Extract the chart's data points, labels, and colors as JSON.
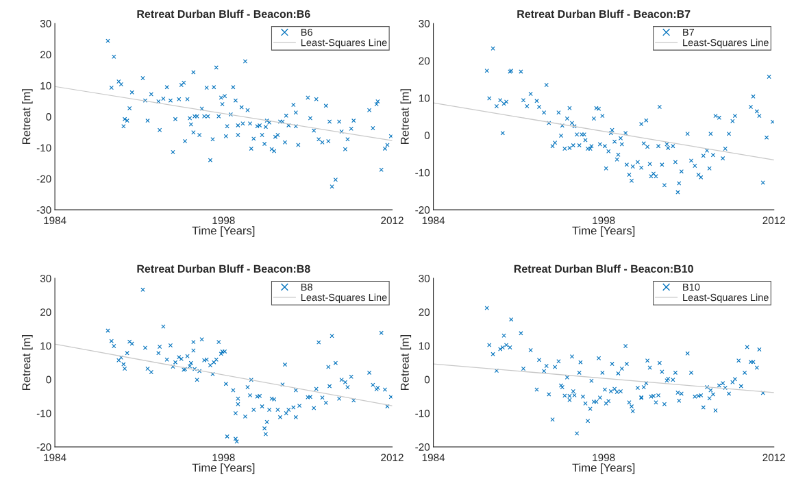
{
  "chart_data": [
    {
      "type": "scatter",
      "title": "Retreat Durban Bluff - Beacon:B6",
      "xlabel": "Time [Years]",
      "ylabel": "Retreat [m]",
      "xlim": [
        1984,
        2012
      ],
      "xticks": [
        1984,
        1998,
        2012
      ],
      "ylim": [
        -30,
        30
      ],
      "yticks": [
        -30,
        -20,
        -10,
        0,
        10,
        20,
        30
      ],
      "legend": "top right",
      "grid": false,
      "series": [
        {
          "name": "B6",
          "marker": "cross",
          "color": "#0072bd",
          "x": [
            1988.4,
            1988.9,
            1988.7,
            1989.3,
            1989.5,
            1989.7,
            1989.8,
            1990.0,
            1990.2,
            1990.4,
            1991.3,
            1991.5,
            1991.7,
            1992.0,
            1992.6,
            1992.7,
            1993.0,
            1993.3,
            1993.6,
            1993.8,
            1994.0,
            1994.3,
            1994.5,
            1994.7,
            1994.8,
            1995.0,
            1995.2,
            1995.3,
            1995.5,
            1995.5,
            1995.6,
            1995.8,
            1996.0,
            1996.2,
            1996.4,
            1996.6,
            1996.7,
            1996.9,
            1997.1,
            1997.2,
            1997.4,
            1997.6,
            1997.8,
            1997.9,
            1998.1,
            1998.2,
            1998.3,
            1998.6,
            1998.8,
            1999.0,
            1999.2,
            1999.2,
            1999.5,
            1999.6,
            1999.8,
            2000.0,
            2000.2,
            2000.3,
            2000.5,
            2000.8,
            2001.0,
            2001.2,
            2001.4,
            2001.5,
            2001.6,
            2001.8,
            2002.0,
            2002.2,
            2002.3,
            2002.5,
            2002.7,
            2002.9,
            2003.1,
            2003.2,
            2003.4,
            2003.8,
            2004.0,
            2004.0,
            2004.2,
            2005.0,
            2005.2,
            2005.5,
            2005.7,
            2005.9,
            2006.2,
            2006.5,
            2006.7,
            2006.8,
            2007.0,
            2007.3,
            2007.6,
            2007.8,
            2008.1,
            2008.3,
            2008.6,
            2008.8,
            2010.1,
            2010.4,
            2010.7,
            2010.8,
            2011.1,
            2011.4,
            2011.6,
            2011.9
          ],
          "values": [
            24.4,
            19.3,
            9.3,
            11.3,
            10.4,
            -3.1,
            -0.8,
            -1.3,
            2.7,
            7.8,
            12.4,
            5.2,
            -1.3,
            7.2,
            4.9,
            -4.3,
            5.8,
            9.5,
            5.2,
            -11.4,
            -0.8,
            5.6,
            10.2,
            10.9,
            -7.9,
            5.6,
            -0.5,
            -2.5,
            14.3,
            -5.1,
            0.1,
            0.1,
            -5.9,
            2.6,
            0.1,
            9.3,
            0.1,
            -14.0,
            -7.3,
            9.5,
            15.8,
            0.1,
            6.1,
            4.0,
            6.6,
            -6.3,
            -3.1,
            0.7,
            9.5,
            5.2,
            -5.9,
            -2.8,
            3.0,
            -2.2,
            17.8,
            2.1,
            -2.2,
            -10.3,
            -7.1,
            -3.1,
            -2.8,
            -5.9,
            -8.8,
            -3.3,
            -1.3,
            -1.9,
            -10.5,
            -11.1,
            -6.5,
            -5.9,
            -1.6,
            -1.6,
            -8.3,
            0.3,
            -2.8,
            3.8,
            1.3,
            -3.1,
            -9.1,
            6.1,
            -0.5,
            -4.5,
            5.6,
            -7.3,
            -8.3,
            3.5,
            -7.9,
            -1.6,
            -22.5,
            -20.3,
            -1.6,
            -4.8,
            -10.5,
            -7.3,
            -3.9,
            -1.3,
            2.1,
            -3.7,
            4.0,
            4.9,
            -17.1,
            -10.3,
            -9.1,
            -6.3
          ]
        },
        {
          "name": "Least-Squares Line",
          "type": "line",
          "line_style": "solid",
          "color": "#c8c8c8",
          "x": [
            1984,
            2012
          ],
          "values": [
            9.7,
            -7.7
          ]
        }
      ]
    },
    {
      "type": "scatter",
      "title": "Retreat Durban Bluff - Beacon:B7",
      "xlabel": "Time [Years]",
      "ylabel": "Retreat [m]",
      "xlim": [
        1984,
        2012
      ],
      "xticks": [
        1984,
        1998,
        2012
      ],
      "ylim": [
        -20,
        30
      ],
      "yticks": [
        -20,
        -10,
        0,
        10,
        20,
        30
      ],
      "legend": "top right",
      "grid": false,
      "series": [
        {
          "name": "B7",
          "marker": "cross",
          "color": "#0072bd",
          "x": [
            1988.4,
            1988.6,
            1988.9,
            1989.2,
            1989.5,
            1989.7,
            1989.8,
            1990.0,
            1990.3,
            1990.4,
            1991.2,
            1991.4,
            1991.7,
            1992.0,
            1992.5,
            1992.7,
            1993.1,
            1993.3,
            1993.5,
            1993.8,
            1994.0,
            1994.3,
            1994.5,
            1994.6,
            1994.8,
            1995.0,
            1995.2,
            1995.2,
            1995.4,
            1995.5,
            1995.6,
            1995.8,
            1996.0,
            1996.2,
            1996.4,
            1996.5,
            1996.7,
            1996.9,
            1997.0,
            1997.2,
            1997.4,
            1997.6,
            1997.7,
            1997.9,
            1998.1,
            1998.2,
            1998.4,
            1998.6,
            1998.7,
            1998.9,
            1999.1,
            1999.2,
            1999.4,
            1999.5,
            1999.8,
            1999.9,
            2000.1,
            2000.3,
            2000.4,
            2000.8,
            2001.1,
            2001.1,
            2001.3,
            2001.5,
            2001.6,
            2001.8,
            2001.9,
            2002.1,
            2002.3,
            2002.5,
            2002.6,
            2002.8,
            2003.0,
            2003.2,
            2003.3,
            2003.7,
            2003.9,
            2004.1,
            2004.2,
            2004.4,
            2004.9,
            2005.2,
            2005.5,
            2005.8,
            2006.0,
            2006.2,
            2006.5,
            2006.7,
            2006.8,
            2007.0,
            2007.2,
            2007.5,
            2007.8,
            2008.0,
            2008.3,
            2008.6,
            2008.8,
            2010.1,
            2010.3,
            2010.6,
            2010.8,
            2011.1,
            2011.4,
            2011.6,
            2011.9
          ],
          "values": [
            17.3,
            9.9,
            23.3,
            7.8,
            9.4,
            0.6,
            8.5,
            9.0,
            17.1,
            17.3,
            17.1,
            9.4,
            7.8,
            11.1,
            9.2,
            7.6,
            6.1,
            13.5,
            3.3,
            -2.9,
            -2.0,
            6.1,
            -0.1,
            2.6,
            -3.6,
            4.5,
            -3.4,
            7.3,
            3.3,
            -2.7,
            2.4,
            0.2,
            -2.7,
            0.2,
            0.2,
            -1.3,
            -3.6,
            -3.6,
            -2.9,
            4.5,
            7.3,
            7.1,
            -2.4,
            5.2,
            -2.9,
            -8.9,
            -4.3,
            0.6,
            1.4,
            -1.7,
            -6.5,
            -5.2,
            -0.8,
            -2.4,
            0.6,
            -7.9,
            -10.6,
            -12.2,
            -8.4,
            -7.2,
            -8.7,
            3.0,
            -2.2,
            4.0,
            -3.1,
            -7.7,
            -11.0,
            -10.3,
            -11.0,
            -2.9,
            7.6,
            -7.9,
            -13.4,
            -2.4,
            -3.4,
            -2.9,
            -7.2,
            -15.3,
            -12.9,
            -9.7,
            0.4,
            -6.8,
            -8.2,
            -10.6,
            -11.3,
            -5.5,
            -4.1,
            -8.9,
            0.4,
            -5.3,
            5.2,
            4.7,
            -6.2,
            -3.6,
            0.4,
            3.8,
            5.2,
            7.6,
            10.4,
            6.4,
            5.2,
            -12.7,
            -0.6,
            15.7,
            3.6
          ]
        },
        {
          "name": "Least-Squares Line",
          "type": "line",
          "line_style": "solid",
          "color": "#c8c8c8",
          "x": [
            1984,
            2012
          ],
          "values": [
            8.7,
            -6.6
          ]
        }
      ]
    },
    {
      "type": "scatter",
      "title": "Retreat Durban Bluff - Beacon:B8",
      "xlabel": "Time [Years]",
      "ylabel": "Retreat [m]",
      "xlim": [
        1984,
        2012
      ],
      "xticks": [
        1984,
        1998,
        2012
      ],
      "ylim": [
        -20,
        30
      ],
      "yticks": [
        -20,
        -10,
        0,
        10,
        20,
        30
      ],
      "legend": "top right",
      "grid": false,
      "series": [
        {
          "name": "B8",
          "marker": "cross",
          "color": "#0072bd",
          "x": [
            1988.4,
            1988.7,
            1988.9,
            1989.3,
            1989.5,
            1989.7,
            1989.8,
            1990.0,
            1990.2,
            1990.4,
            1991.3,
            1991.5,
            1991.7,
            1992.0,
            1992.6,
            1992.7,
            1993.0,
            1993.3,
            1993.6,
            1993.8,
            1994.0,
            1994.3,
            1994.5,
            1994.7,
            1994.8,
            1995.0,
            1995.2,
            1995.3,
            1995.5,
            1995.5,
            1995.6,
            1995.8,
            1996.0,
            1996.2,
            1996.4,
            1996.6,
            1996.9,
            1997.1,
            1997.2,
            1997.4,
            1997.6,
            1997.8,
            1997.9,
            1998.1,
            1998.2,
            1998.3,
            1998.8,
            1999.0,
            1999.0,
            1999.1,
            1999.2,
            1999.2,
            1999.8,
            2000.0,
            2000.2,
            2000.3,
            2000.5,
            2000.8,
            2001.0,
            2001.2,
            2001.4,
            2001.5,
            2001.6,
            2001.8,
            2002.0,
            2002.2,
            2002.5,
            2002.7,
            2002.9,
            2003.1,
            2003.2,
            2003.4,
            2003.8,
            2004.0,
            2004.0,
            2004.3,
            2005.0,
            2005.2,
            2005.5,
            2005.7,
            2005.9,
            2006.2,
            2006.5,
            2006.7,
            2006.8,
            2007.0,
            2007.3,
            2007.6,
            2007.8,
            2008.1,
            2008.3,
            2008.6,
            2008.8,
            2010.1,
            2010.4,
            2010.7,
            2010.8,
            2011.1,
            2011.4,
            2011.6,
            2011.9
          ],
          "values": [
            14.5,
            11.4,
            9.9,
            5.7,
            6.5,
            4.5,
            3.2,
            7.8,
            11.2,
            10.6,
            26.6,
            9.4,
            3.2,
            2.2,
            7.8,
            9.7,
            15.7,
            5.9,
            10.1,
            3.8,
            5.1,
            6.6,
            6.1,
            2.9,
            3.1,
            6.9,
            3.9,
            4.9,
            11.1,
            8.6,
            3.1,
            -0.1,
            2.5,
            11.9,
            5.7,
            5.9,
            4.2,
            1.6,
            5.1,
            5.9,
            11.1,
            7.6,
            8.3,
            8.3,
            -1.3,
            -16.9,
            -3.2,
            -10.0,
            -17.6,
            -18.4,
            -5.7,
            -7.3,
            -11.0,
            -2.3,
            -4.7,
            -0.1,
            -9.0,
            -5.1,
            -4.9,
            -8.0,
            -14.5,
            -16.2,
            -12.6,
            -9.0,
            -5.7,
            -5.9,
            -9.0,
            -11.2,
            -1.5,
            4.4,
            -10.0,
            -9.0,
            -8.3,
            -11.2,
            -3.2,
            -7.8,
            -5.3,
            -5.2,
            -8.5,
            -2.8,
            11.0,
            -5.4,
            -6.9,
            3.7,
            -2.0,
            12.9,
            4.9,
            -5.7,
            -0.1,
            -0.8,
            -2.3,
            0.8,
            -6.2,
            2.0,
            -1.6,
            -2.9,
            -2.5,
            13.8,
            -3.0,
            -8.0,
            -5.2
          ]
        },
        {
          "name": "Least-Squares Line",
          "type": "line",
          "line_style": "solid",
          "color": "#c8c8c8",
          "x": [
            1984,
            2012
          ],
          "values": [
            10.5,
            -7.8
          ]
        }
      ]
    },
    {
      "type": "scatter",
      "title": "Retreat Durban Bluff - Beacon:B10",
      "xlabel": "Time [Years]",
      "ylabel": "Retreat [m]",
      "xlim": [
        1984,
        2012
      ],
      "xticks": [
        1984,
        1998,
        2012
      ],
      "ylim": [
        -20,
        30
      ],
      "yticks": [
        -20,
        -10,
        0,
        10,
        20,
        30
      ],
      "legend": "top right",
      "grid": false,
      "series": [
        {
          "name": "B10",
          "marker": "cross",
          "color": "#0072bd",
          "x": [
            1988.4,
            1988.6,
            1988.9,
            1989.2,
            1989.5,
            1989.7,
            1989.8,
            1990.0,
            1990.3,
            1990.4,
            1991.2,
            1991.4,
            1992.0,
            1992.5,
            1992.7,
            1993.1,
            1993.3,
            1993.5,
            1993.8,
            1994.0,
            1994.3,
            1994.5,
            1994.6,
            1994.8,
            1995.0,
            1995.2,
            1995.2,
            1995.4,
            1995.5,
            1995.6,
            1995.8,
            1996.0,
            1996.1,
            1996.3,
            1996.5,
            1996.7,
            1996.9,
            1997.0,
            1997.2,
            1997.4,
            1997.6,
            1997.7,
            1997.9,
            1998.1,
            1998.2,
            1998.4,
            1998.6,
            1998.7,
            1998.9,
            1999.1,
            1999.2,
            1999.4,
            1999.5,
            1999.8,
            1999.9,
            2000.1,
            2000.3,
            2000.4,
            2000.8,
            2001.1,
            2001.1,
            2001.3,
            2001.5,
            2001.6,
            2001.8,
            2001.9,
            2002.1,
            2002.3,
            2002.5,
            2002.6,
            2002.8,
            2003.0,
            2003.2,
            2003.3,
            2003.7,
            2003.9,
            2004.1,
            2004.2,
            2004.4,
            2004.9,
            2005.2,
            2005.5,
            2005.8,
            2006.0,
            2006.2,
            2006.5,
            2006.7,
            2006.8,
            2007.0,
            2007.2,
            2007.5,
            2007.8,
            2008.0,
            2008.3,
            2008.6,
            2008.8,
            2009.1,
            2009.3,
            2009.6,
            2009.8,
            2010.1,
            2010.3,
            2010.6,
            2010.8,
            2011.1
          ],
          "values": [
            21.2,
            10.2,
            7.5,
            2.6,
            9.0,
            9.5,
            13.0,
            10.2,
            9.5,
            17.8,
            13.7,
            3.2,
            8.7,
            -3.0,
            5.8,
            2.5,
            4.0,
            -4.4,
            -11.9,
            3.7,
            5.4,
            -1.8,
            -2.3,
            -4.8,
            0.6,
            -6.1,
            -4.9,
            6.8,
            -3.5,
            -4.7,
            -16.0,
            2.0,
            5.1,
            -5.1,
            -7.1,
            -12.3,
            -8.7,
            -0.4,
            -6.6,
            -6.6,
            6.3,
            -5.4,
            2.0,
            -3.0,
            -7.1,
            -6.4,
            -3.5,
            4.6,
            -2.8,
            -3.7,
            1.8,
            -3.5,
            3.2,
            9.9,
            4.6,
            -6.8,
            -8.0,
            -9.4,
            -2.5,
            -5.5,
            -5.3,
            -2.3,
            -1.1,
            5.6,
            3.5,
            -5.1,
            -4.9,
            -6.8,
            -4.7,
            4.9,
            2.3,
            -7.3,
            -0.3,
            0.2,
            -0.1,
            2.0,
            -3.9,
            -6.3,
            -4.2,
            7.7,
            2.0,
            -5.1,
            -4.9,
            -4.7,
            -8.3,
            -2.3,
            -5.6,
            -3.2,
            -4.4,
            -9.2,
            -1.8,
            -1.1,
            -2.5,
            -4.2,
            -0.8,
            0.1,
            5.6,
            -2.0,
            2.0,
            9.6,
            5.2,
            5.2,
            3.5,
            8.9,
            -4.0
          ]
        },
        {
          "name": "Least-Squares Line",
          "type": "line",
          "line_style": "solid",
          "color": "#c8c8c8",
          "x": [
            1984,
            2012
          ],
          "values": [
            4.6,
            -3.9
          ]
        }
      ]
    }
  ]
}
